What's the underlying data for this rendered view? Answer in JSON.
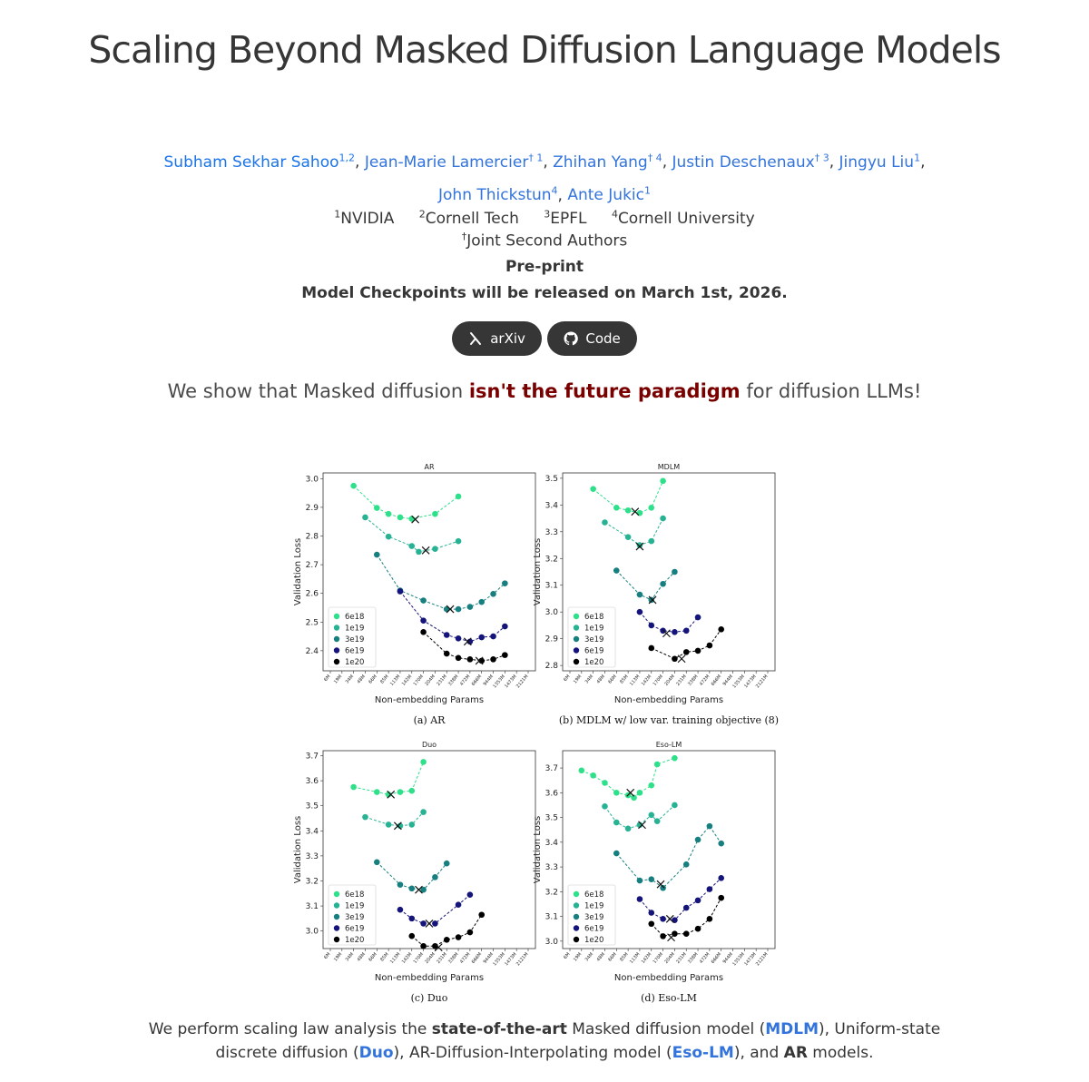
{
  "title": "Scaling Beyond Masked Diffusion Language Models",
  "authors": [
    {
      "name": "Subham Sekhar Sahoo",
      "sup": "1,2"
    },
    {
      "name": "Jean-Marie Lamercier",
      "sup": "† 1"
    },
    {
      "name": "Zhihan Yang",
      "sup": "† 4"
    },
    {
      "name": "Justin Deschenaux",
      "sup": "† 3"
    },
    {
      "name": "Jingyu Liu",
      "sup": "1"
    },
    {
      "name": "John Thickstun",
      "sup": "4"
    },
    {
      "name": "Ante Jukic",
      "sup": "1"
    }
  ],
  "affiliations": [
    {
      "sup": "1",
      "name": "NVIDIA"
    },
    {
      "sup": "2",
      "name": "Cornell Tech"
    },
    {
      "sup": "3",
      "name": "EPFL"
    },
    {
      "sup": "4",
      "name": "Cornell University"
    }
  ],
  "joint_note": {
    "sup": "†",
    "text": "Joint Second Authors"
  },
  "venue": "Pre-print",
  "release_note": "Model Checkpoints will be released on March 1st, 2026.",
  "buttons": {
    "arxiv": "arXiv",
    "code": "Code"
  },
  "tagline": {
    "pre": "We show that Masked diffusion ",
    "emph": "isn't the future paradigm",
    "post": " for diffusion LLMs!"
  },
  "caption": {
    "p1": "We perform scaling law analysis the ",
    "b1": "state-of-the-art",
    "p2": " Masked diffusion model (",
    "l1": "MDLM",
    "p3": "), Uniform-state discrete diffusion (",
    "l2": "Duo",
    "p4": "), AR-Diffusion-Interpolating model (",
    "l3": "Eso-LM",
    "p5": "), and ",
    "b2": "AR",
    "p6": " models."
  },
  "chart_data": [
    {
      "type": "line",
      "title": "AR",
      "subcaption": "(a) AR",
      "xlabel": "Non-embedding Params",
      "ylabel": "Validation Loss",
      "x_ticks": [
        "6M",
        "19M",
        "34M",
        "48M",
        "66M",
        "85M",
        "113M",
        "142M",
        "170M",
        "204M",
        "231M",
        "338M",
        "472M",
        "666M",
        "944M",
        "1353M",
        "1473M",
        "2121M"
      ],
      "yticks": [
        2.4,
        2.5,
        2.6,
        2.7,
        2.8,
        2.9,
        3.0
      ],
      "ylim": [
        2.33,
        3.02
      ],
      "series": [
        {
          "name": "6e18",
          "color": "#2ee08a",
          "points": [
            [
              2,
              2.975
            ],
            [
              4,
              2.898
            ],
            [
              5,
              2.877
            ],
            [
              6,
              2.865
            ],
            [
              7,
              2.86
            ],
            [
              9,
              2.877
            ],
            [
              11,
              2.938
            ]
          ],
          "min": [
            7.3,
            2.858
          ]
        },
        {
          "name": "1e19",
          "color": "#27b393",
          "points": [
            [
              3,
              2.865
            ],
            [
              5,
              2.798
            ],
            [
              7,
              2.765
            ],
            [
              7.6,
              2.745
            ],
            [
              9,
              2.755
            ],
            [
              11,
              2.782
            ]
          ],
          "min": [
            8.2,
            2.75
          ]
        },
        {
          "name": "3e19",
          "color": "#177f7f",
          "points": [
            [
              4,
              2.735
            ],
            [
              6,
              2.61
            ],
            [
              8,
              2.575
            ],
            [
              10,
              2.545
            ],
            [
              11,
              2.545
            ],
            [
              12,
              2.553
            ],
            [
              13,
              2.57
            ],
            [
              14,
              2.598
            ],
            [
              15,
              2.635
            ]
          ],
          "min": [
            10.3,
            2.545
          ]
        },
        {
          "name": "6e19",
          "color": "#14147a",
          "points": [
            [
              6,
              2.607
            ],
            [
              8,
              2.505
            ],
            [
              10,
              2.455
            ],
            [
              11,
              2.443
            ],
            [
              12,
              2.432
            ],
            [
              13,
              2.447
            ],
            [
              14,
              2.45
            ],
            [
              15,
              2.485
            ]
          ],
          "min": [
            11.8,
            2.432
          ]
        },
        {
          "name": "1e20",
          "color": "#000000",
          "points": [
            [
              8,
              2.465
            ],
            [
              10,
              2.39
            ],
            [
              11,
              2.375
            ],
            [
              12,
              2.37
            ],
            [
              13,
              2.365
            ],
            [
              14,
              2.37
            ],
            [
              15,
              2.385
            ]
          ],
          "min": [
            12.8,
            2.365
          ]
        }
      ]
    },
    {
      "type": "line",
      "title": "MDLM",
      "subcaption": "(b) MDLM w/ low var. training objective (8)",
      "xlabel": "Non-embedding Params",
      "ylabel": "Validation Loss",
      "x_ticks": [
        "6M",
        "19M",
        "34M",
        "48M",
        "66M",
        "85M",
        "113M",
        "142M",
        "170M",
        "204M",
        "231M",
        "338M",
        "472M",
        "666M",
        "944M",
        "1353M",
        "1473M",
        "2121M"
      ],
      "yticks": [
        2.8,
        2.9,
        3.0,
        3.1,
        3.2,
        3.3,
        3.4,
        3.5
      ],
      "ylim": [
        2.78,
        3.52
      ],
      "series": [
        {
          "name": "6e18",
          "color": "#2ee08a",
          "points": [
            [
              2,
              3.46
            ],
            [
              4,
              3.39
            ],
            [
              5,
              3.38
            ],
            [
              6,
              3.37
            ],
            [
              7,
              3.39
            ],
            [
              8,
              3.49
            ]
          ],
          "min": [
            5.6,
            3.375
          ]
        },
        {
          "name": "1e19",
          "color": "#27b393",
          "points": [
            [
              3,
              3.335
            ],
            [
              5,
              3.28
            ],
            [
              6,
              3.25
            ],
            [
              7,
              3.265
            ],
            [
              8,
              3.35
            ]
          ],
          "min": [
            6,
            3.245
          ]
        },
        {
          "name": "3e19",
          "color": "#177f7f",
          "points": [
            [
              4,
              3.155
            ],
            [
              6,
              3.065
            ],
            [
              7,
              3.045
            ],
            [
              8,
              3.105
            ],
            [
              9,
              3.15
            ]
          ],
          "min": [
            7.1,
            3.045
          ]
        },
        {
          "name": "6e19",
          "color": "#14147a",
          "points": [
            [
              6,
              3.0
            ],
            [
              7,
              2.95
            ],
            [
              8,
              2.93
            ],
            [
              9,
              2.925
            ],
            [
              10,
              2.93
            ],
            [
              11,
              2.98
            ]
          ],
          "min": [
            8.3,
            2.92
          ]
        },
        {
          "name": "1e20",
          "color": "#000000",
          "points": [
            [
              7,
              2.865
            ],
            [
              9,
              2.825
            ],
            [
              10,
              2.85
            ],
            [
              11,
              2.855
            ],
            [
              12,
              2.875
            ],
            [
              13,
              2.935
            ]
          ],
          "min": [
            9.6,
            2.825
          ]
        }
      ]
    },
    {
      "type": "line",
      "title": "Duo",
      "subcaption": "(c) Duo",
      "xlabel": "Non-embedding Params",
      "ylabel": "Validation Loss",
      "x_ticks": [
        "6M",
        "19M",
        "34M",
        "48M",
        "66M",
        "85M",
        "113M",
        "142M",
        "170M",
        "204M",
        "231M",
        "338M",
        "472M",
        "666M",
        "944M",
        "1353M",
        "1473M",
        "2121M"
      ],
      "yticks": [
        3.0,
        3.1,
        3.2,
        3.3,
        3.4,
        3.5,
        3.6,
        3.7
      ],
      "ylim": [
        2.93,
        3.72
      ],
      "series": [
        {
          "name": "6e18",
          "color": "#2ee08a",
          "points": [
            [
              2,
              3.575
            ],
            [
              4,
              3.555
            ],
            [
              5,
              3.545
            ],
            [
              6,
              3.555
            ],
            [
              7,
              3.56
            ],
            [
              8,
              3.675
            ]
          ],
          "min": [
            5.2,
            3.545
          ]
        },
        {
          "name": "1e19",
          "color": "#27b393",
          "points": [
            [
              3,
              3.455
            ],
            [
              5,
              3.425
            ],
            [
              6,
              3.42
            ],
            [
              7,
              3.425
            ],
            [
              8,
              3.475
            ]
          ],
          "min": [
            5.8,
            3.42
          ]
        },
        {
          "name": "3e19",
          "color": "#177f7f",
          "points": [
            [
              4,
              3.275
            ],
            [
              6,
              3.185
            ],
            [
              7,
              3.17
            ],
            [
              8,
              3.165
            ],
            [
              9,
              3.215
            ],
            [
              10,
              3.27
            ]
          ],
          "min": [
            7.6,
            3.165
          ]
        },
        {
          "name": "6e19",
          "color": "#14147a",
          "points": [
            [
              6,
              3.085
            ],
            [
              7,
              3.05
            ],
            [
              8,
              3.03
            ],
            [
              9,
              3.03
            ],
            [
              11,
              3.105
            ],
            [
              12,
              3.145
            ]
          ],
          "min": [
            8.5,
            3.03
          ]
        },
        {
          "name": "1e20",
          "color": "#000000",
          "points": [
            [
              7,
              2.98
            ],
            [
              8,
              2.94
            ],
            [
              9,
              2.94
            ],
            [
              10,
              2.965
            ],
            [
              11,
              2.975
            ],
            [
              12,
              2.995
            ],
            [
              13,
              3.065
            ]
          ],
          "min": [
            9.3,
            2.935
          ]
        }
      ]
    },
    {
      "type": "line",
      "title": "Eso-LM",
      "subcaption": "(d) Eso-LM",
      "xlabel": "Non-embedding Params",
      "ylabel": "Validation Loss",
      "x_ticks": [
        "6M",
        "19M",
        "34M",
        "48M",
        "66M",
        "85M",
        "113M",
        "142M",
        "170M",
        "204M",
        "231M",
        "338M",
        "472M",
        "666M",
        "944M",
        "1353M",
        "1473M",
        "2121M"
      ],
      "yticks": [
        3.0,
        3.1,
        3.2,
        3.3,
        3.4,
        3.5,
        3.6,
        3.7
      ],
      "ylim": [
        2.97,
        3.77
      ],
      "series": [
        {
          "name": "6e18",
          "color": "#2ee08a",
          "points": [
            [
              1,
              3.69
            ],
            [
              2,
              3.67
            ],
            [
              3,
              3.64
            ],
            [
              4,
              3.6
            ],
            [
              5,
              3.59
            ],
            [
              5.5,
              3.58
            ],
            [
              6,
              3.6
            ],
            [
              7,
              3.63
            ],
            [
              7.5,
              3.715
            ],
            [
              9,
              3.74
            ]
          ],
          "min": [
            5.2,
            3.6
          ]
        },
        {
          "name": "1e19",
          "color": "#27b393",
          "points": [
            [
              3,
              3.545
            ],
            [
              4,
              3.48
            ],
            [
              5,
              3.455
            ],
            [
              6,
              3.47
            ],
            [
              7,
              3.51
            ],
            [
              7.5,
              3.485
            ],
            [
              9,
              3.55
            ]
          ],
          "min": [
            6.2,
            3.47
          ]
        },
        {
          "name": "3e19",
          "color": "#177f7f",
          "points": [
            [
              4,
              3.355
            ],
            [
              6,
              3.245
            ],
            [
              7,
              3.25
            ],
            [
              8,
              3.215
            ],
            [
              10,
              3.31
            ],
            [
              11,
              3.41
            ],
            [
              12,
              3.465
            ],
            [
              13,
              3.395
            ]
          ],
          "min": [
            7.8,
            3.23
          ]
        },
        {
          "name": "6e19",
          "color": "#14147a",
          "points": [
            [
              6,
              3.17
            ],
            [
              7,
              3.115
            ],
            [
              8,
              3.09
            ],
            [
              9,
              3.085
            ],
            [
              10,
              3.135
            ],
            [
              11,
              3.165
            ],
            [
              12,
              3.21
            ],
            [
              13,
              3.255
            ]
          ],
          "min": [
            8.6,
            3.09
          ]
        },
        {
          "name": "1e20",
          "color": "#000000",
          "points": [
            [
              7,
              3.07
            ],
            [
              8,
              3.02
            ],
            [
              9,
              3.03
            ],
            [
              10,
              3.03
            ],
            [
              11,
              3.05
            ],
            [
              12,
              3.09
            ],
            [
              13,
              3.175
            ]
          ],
          "min": [
            8.7,
            3.015
          ]
        }
      ]
    }
  ]
}
